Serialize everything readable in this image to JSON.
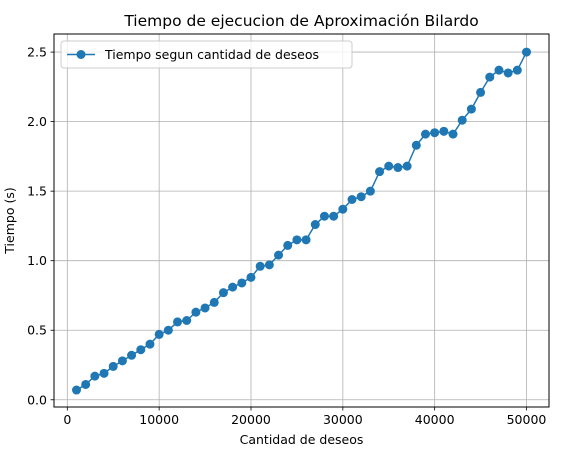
{
  "chart_data": {
    "type": "line",
    "title": "Tiempo de ejecucion de Aproximación Bilardo",
    "xlabel": "Cantidad de deseos",
    "ylabel": "Tiempo (s)",
    "xlim": [
      -1450,
      52450
    ],
    "ylim": [
      -0.052,
      2.63
    ],
    "xticks": [
      0,
      10000,
      20000,
      30000,
      40000,
      50000
    ],
    "yticks": [
      0.0,
      0.5,
      1.0,
      1.5,
      2.0,
      2.5
    ],
    "xtick_labels": [
      "0",
      "10000",
      "20000",
      "30000",
      "40000",
      "50000"
    ],
    "ytick_labels": [
      "0.0",
      "0.5",
      "1.0",
      "1.5",
      "2.0",
      "2.5"
    ],
    "grid": true,
    "legend_position": "upper-left",
    "line_color": "#1f77b4",
    "series": [
      {
        "name": "Tiempo segun cantidad de deseos",
        "x": [
          1000,
          2000,
          3000,
          4000,
          5000,
          6000,
          7000,
          8000,
          9000,
          10000,
          11000,
          12000,
          13000,
          14000,
          15000,
          16000,
          17000,
          18000,
          19000,
          20000,
          21000,
          22000,
          23000,
          24000,
          25000,
          26000,
          27000,
          28000,
          29000,
          30000,
          31000,
          32000,
          33000,
          34000,
          35000,
          36000,
          37000,
          38000,
          39000,
          40000,
          41000,
          42000,
          43000,
          44000,
          45000,
          46000,
          47000,
          48000,
          49000,
          50000
        ],
        "y": [
          0.07,
          0.11,
          0.17,
          0.19,
          0.24,
          0.28,
          0.32,
          0.36,
          0.4,
          0.47,
          0.5,
          0.56,
          0.57,
          0.63,
          0.66,
          0.7,
          0.77,
          0.81,
          0.84,
          0.88,
          0.96,
          0.97,
          1.04,
          1.11,
          1.15,
          1.15,
          1.26,
          1.32,
          1.32,
          1.37,
          1.44,
          1.46,
          1.5,
          1.64,
          1.68,
          1.67,
          1.68,
          1.83,
          1.91,
          1.92,
          1.93,
          1.91,
          2.01,
          2.09,
          2.21,
          2.32,
          2.37,
          2.35,
          2.37,
          2.5
        ]
      }
    ]
  }
}
